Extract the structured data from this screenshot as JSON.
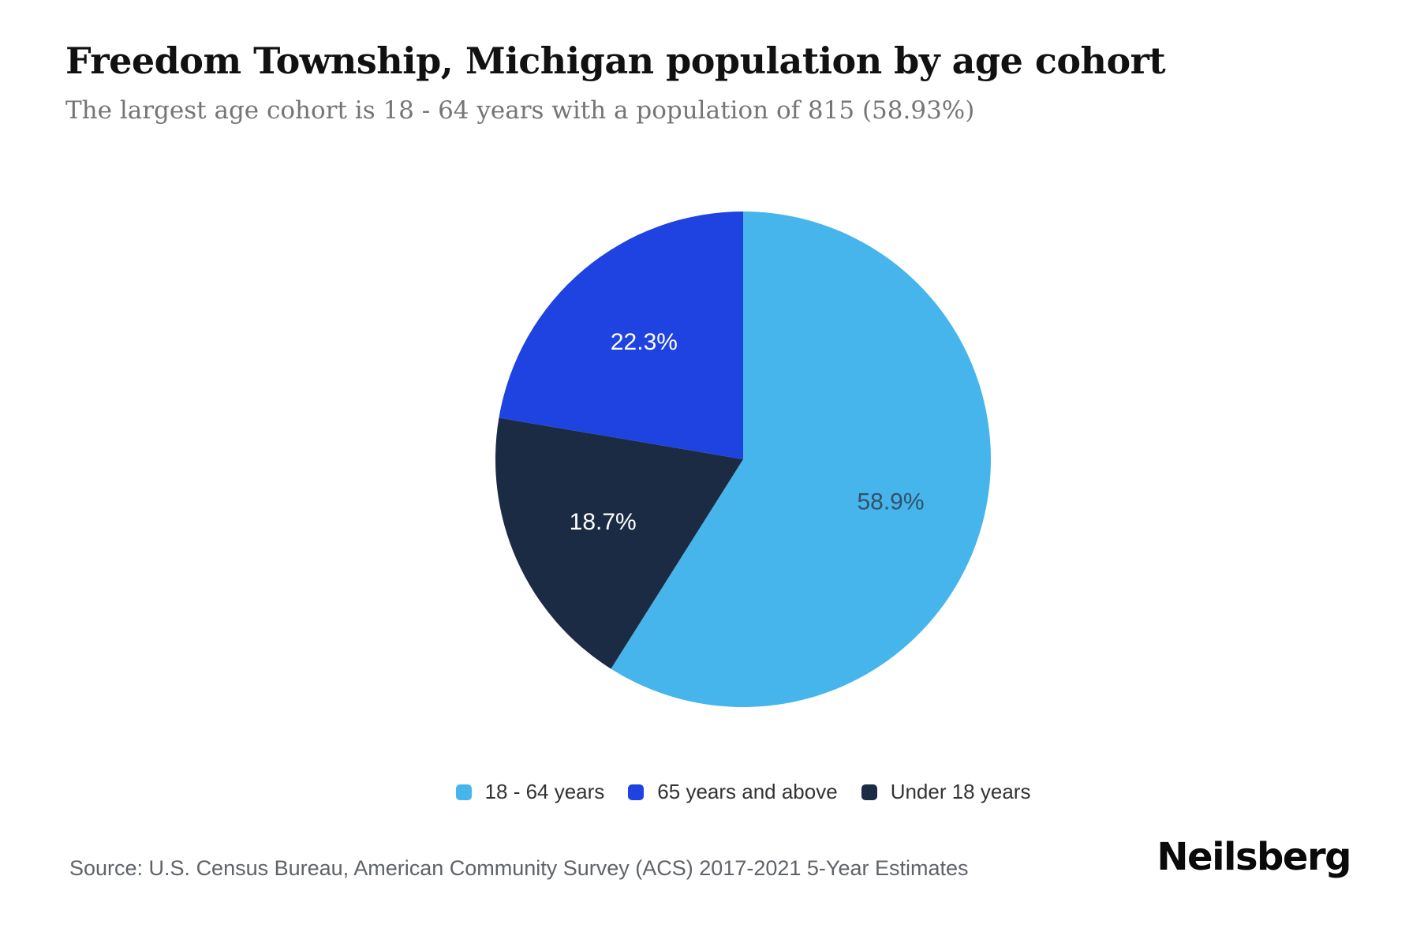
{
  "header": {
    "title": "Freedom Township, Michigan population by age cohort",
    "subtitle": "The largest age cohort is 18 - 64 years with a population of 815 (58.93%)"
  },
  "chart_data": {
    "type": "pie",
    "title": "Freedom Township, Michigan population by age cohort",
    "start_angle_deg": 0,
    "direction": "clockwise",
    "slices": [
      {
        "label": "18 - 64 years",
        "percent": 58.9,
        "display": "58.9%",
        "color": "#45B5EB",
        "label_color": "#33516B"
      },
      {
        "label": "Under 18 years",
        "percent": 18.7,
        "display": "18.7%",
        "color": "#1C2B44",
        "label_color": "#FFFFFF"
      },
      {
        "label": "65 years and above",
        "percent": 22.3,
        "display": "22.3%",
        "color": "#1E43E0",
        "label_color": "#FFFFFF"
      }
    ],
    "legend_order": [
      0,
      2,
      1
    ],
    "legend_position": "bottom-center",
    "largest_cohort": {
      "name": "18 - 64 years",
      "population": 815,
      "percent_display": "58.93%"
    }
  },
  "footer": {
    "source": "Source: U.S. Census Bureau, American Community Survey (ACS) 2017-2021 5-Year Estimates",
    "brand": "Neilsberg"
  }
}
